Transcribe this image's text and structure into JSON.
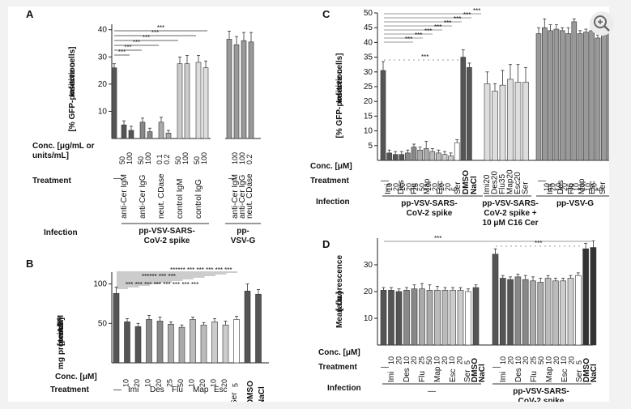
{
  "ui": {
    "zoom_icon": "zoom-in-icon"
  },
  "chart_data": [
    {
      "panel": "A",
      "type": "bar",
      "ylabel": "Infection\n[% GFP-positive cells]",
      "ylim": [
        0,
        42
      ],
      "yticks": [
        10,
        20,
        30,
        40
      ],
      "conc_label": "Conc. [μg/mL or\nunits/mL]",
      "treatment_label": "Treatment",
      "infection_label": "Infection",
      "groups": [
        {
          "bars": [
            {
              "value": 26,
              "err": 1.5,
              "fill": "#555555",
              "conc": ""
            }
          ],
          "treatment": "—",
          "dash": true
        },
        {
          "bars": [
            {
              "value": 5,
              "err": 1.5,
              "fill": "#555555",
              "conc": "50"
            },
            {
              "value": 3,
              "err": 1.5,
              "fill": "#555555",
              "conc": "100"
            }
          ],
          "treatment": "anti-Cer IgM"
        },
        {
          "bars": [
            {
              "value": 6,
              "err": 1.5,
              "fill": "#888888",
              "conc": "50"
            },
            {
              "value": 2.5,
              "err": 1.3,
              "fill": "#888888",
              "conc": "100"
            }
          ],
          "treatment": "anti-Cer IgG"
        },
        {
          "bars": [
            {
              "value": 6,
              "err": 1.8,
              "fill": "#aaaaaa",
              "conc": "0.1"
            },
            {
              "value": 2,
              "err": 1.0,
              "fill": "#aaaaaa",
              "conc": "0.2"
            }
          ],
          "treatment": "neut. CDase"
        },
        {
          "bars": [
            {
              "value": 27.5,
              "err": 2.5,
              "fill": "#cccccc",
              "conc": "50"
            },
            {
              "value": 27.5,
              "err": 3,
              "fill": "#cccccc",
              "conc": "100"
            }
          ],
          "treatment": "control IgM"
        },
        {
          "bars": [
            {
              "value": 28,
              "err": 2.5,
              "fill": "#dddddd",
              "conc": "50"
            },
            {
              "value": 26,
              "err": 2.5,
              "fill": "#dddddd",
              "conc": "100"
            }
          ],
          "treatment": "control IgG"
        },
        {
          "bars": [
            {
              "value": 36.5,
              "err": 3,
              "fill": "#999999",
              "conc": ""
            }
          ],
          "treatment": "—",
          "dash": true
        },
        {
          "bars": [
            {
              "value": 34.5,
              "err": 3,
              "fill": "#999999",
              "conc": "100"
            },
            {
              "value": 36,
              "err": 3,
              "fill": "#999999",
              "conc": "100"
            },
            {
              "value": 35.5,
              "err": 3.5,
              "fill": "#999999",
              "conc": "0.2"
            }
          ],
          "treatment_multi": [
            "anti-Cer IgM",
            "anti-Cer IgG",
            "neut. CDase"
          ]
        }
      ],
      "stars": "***",
      "infection_groups": [
        "pp-VSV-SARS-\nCoV-2 spike",
        "pp-\nVSV-G"
      ]
    },
    {
      "panel": "B",
      "type": "bar",
      "ylabel": "ASM\n[pmol/\nmg protein/h]",
      "ylim": [
        0,
        115
      ],
      "yticks": [
        50,
        100
      ],
      "conc_label": "Conc. [μM]",
      "treatment_label": "Treatment",
      "values": [
        88,
        52,
        46,
        55,
        53,
        49,
        45,
        55,
        48,
        52,
        48,
        55,
        91,
        87
      ],
      "errs": [
        8,
        4,
        4,
        5,
        5,
        3,
        3,
        3,
        3,
        4,
        5,
        4,
        9,
        6
      ],
      "concs": [
        "",
        "10",
        "20",
        "10",
        "20",
        "25",
        "50",
        "10",
        "20",
        "10",
        "20",
        "5",
        "",
        ""
      ],
      "treatments": [
        "—",
        "Imi",
        "Des",
        "Flu",
        "Map",
        "Esc",
        "Ser",
        "DMSO",
        "NaCl"
      ],
      "stars": "***"
    },
    {
      "panel": "C",
      "type": "bar",
      "ylabel": "Infection\n[% GFP-positive cells]",
      "ylim": [
        0,
        50
      ],
      "yticks": [
        5,
        10,
        15,
        20,
        25,
        30,
        35,
        40,
        45,
        50
      ],
      "conc_label": "Conc. [μM]",
      "treatment_label": "Treatment",
      "infection_label": "Infection",
      "g1_values": [
        30.5,
        2.5,
        2,
        2,
        2.5,
        4.5,
        3.5,
        4,
        3,
        2.5,
        2,
        1.5,
        6,
        35,
        31.5
      ],
      "g1_errs": [
        3,
        1,
        1,
        1,
        1,
        1,
        1,
        2.5,
        1,
        1,
        1,
        1,
        1,
        2.5,
        1.5
      ],
      "g2_values": [
        26,
        23.5,
        25.5,
        27.5,
        26.5,
        26.5
      ],
      "g2_errs": [
        4,
        2.5,
        5,
        5,
        6,
        5
      ],
      "g3_values": [
        43,
        45,
        44,
        44.5,
        44,
        43,
        47,
        43,
        43.5,
        44,
        41.5,
        44,
        44
      ],
      "g3_errs": [
        2,
        3,
        2,
        1.5,
        1,
        2,
        1,
        1,
        1,
        1,
        1,
        1,
        1
      ],
      "treat1": [
        "—",
        "Imi",
        "Des",
        "Flu",
        "Map",
        "Esc",
        "Ser",
        "DMSO",
        "NaCl"
      ],
      "conc1": [
        "10",
        "20",
        "10",
        "20",
        "25",
        "50",
        "10",
        "20",
        "10",
        "20",
        "5"
      ],
      "treat2": [
        "Imi20",
        "Des20",
        "Flu35",
        "Map20",
        "Esc20",
        "Ser"
      ],
      "treat3": [
        "—",
        "Imi",
        "Des",
        "Flu",
        "Map",
        "Esc",
        "Ser"
      ],
      "conc3": [
        "10",
        "20",
        "10",
        "20",
        "35",
        "10",
        "20",
        "10",
        "20",
        "5"
      ],
      "infection_groups": [
        "pp-VSV-SARS-\nCoV-2 spike",
        "pp-VSV-SARS-\nCoV-2 spike +\n10 μM C16 Cer",
        "pp-VSV-G"
      ],
      "stars": "***"
    },
    {
      "panel": "D",
      "type": "bar",
      "ylabel": "Mean fluorescence\n[a.u.]",
      "ylim": [
        0,
        40
      ],
      "yticks": [
        10,
        20,
        30
      ],
      "conc_label": "Conc. [μM]",
      "treatment_label": "Treatment",
      "infection_label": "Infection",
      "g1_values": [
        20.5,
        20.5,
        20,
        20.5,
        21,
        21,
        20.5,
        20.5,
        20.5,
        20.5,
        20.5,
        20,
        21.5
      ],
      "g1_errs": [
        1,
        1,
        1,
        1,
        1.5,
        2,
        2,
        1.5,
        1,
        1,
        1,
        1,
        1
      ],
      "g2_values": [
        34,
        25,
        24.5,
        25.5,
        24.5,
        24,
        23.5,
        25,
        24,
        24,
        25,
        26,
        36,
        36.5
      ],
      "g2_errs": [
        2,
        1,
        1,
        1,
        1.5,
        1.5,
        1.5,
        1,
        1,
        1,
        1,
        1,
        2,
        2.5
      ],
      "conc": [
        "10",
        "20",
        "10",
        "20",
        "25",
        "50",
        "10",
        "20",
        "10",
        "20",
        "5"
      ],
      "treat": [
        "—",
        "Imi",
        "Des",
        "Flu",
        "Map",
        "Esc",
        "Ser",
        "DMSO",
        "NaCl"
      ],
      "infection_groups": [
        "—",
        "pp-VSV-SARS-\nCoV-2 spike"
      ],
      "stars": "***"
    }
  ]
}
